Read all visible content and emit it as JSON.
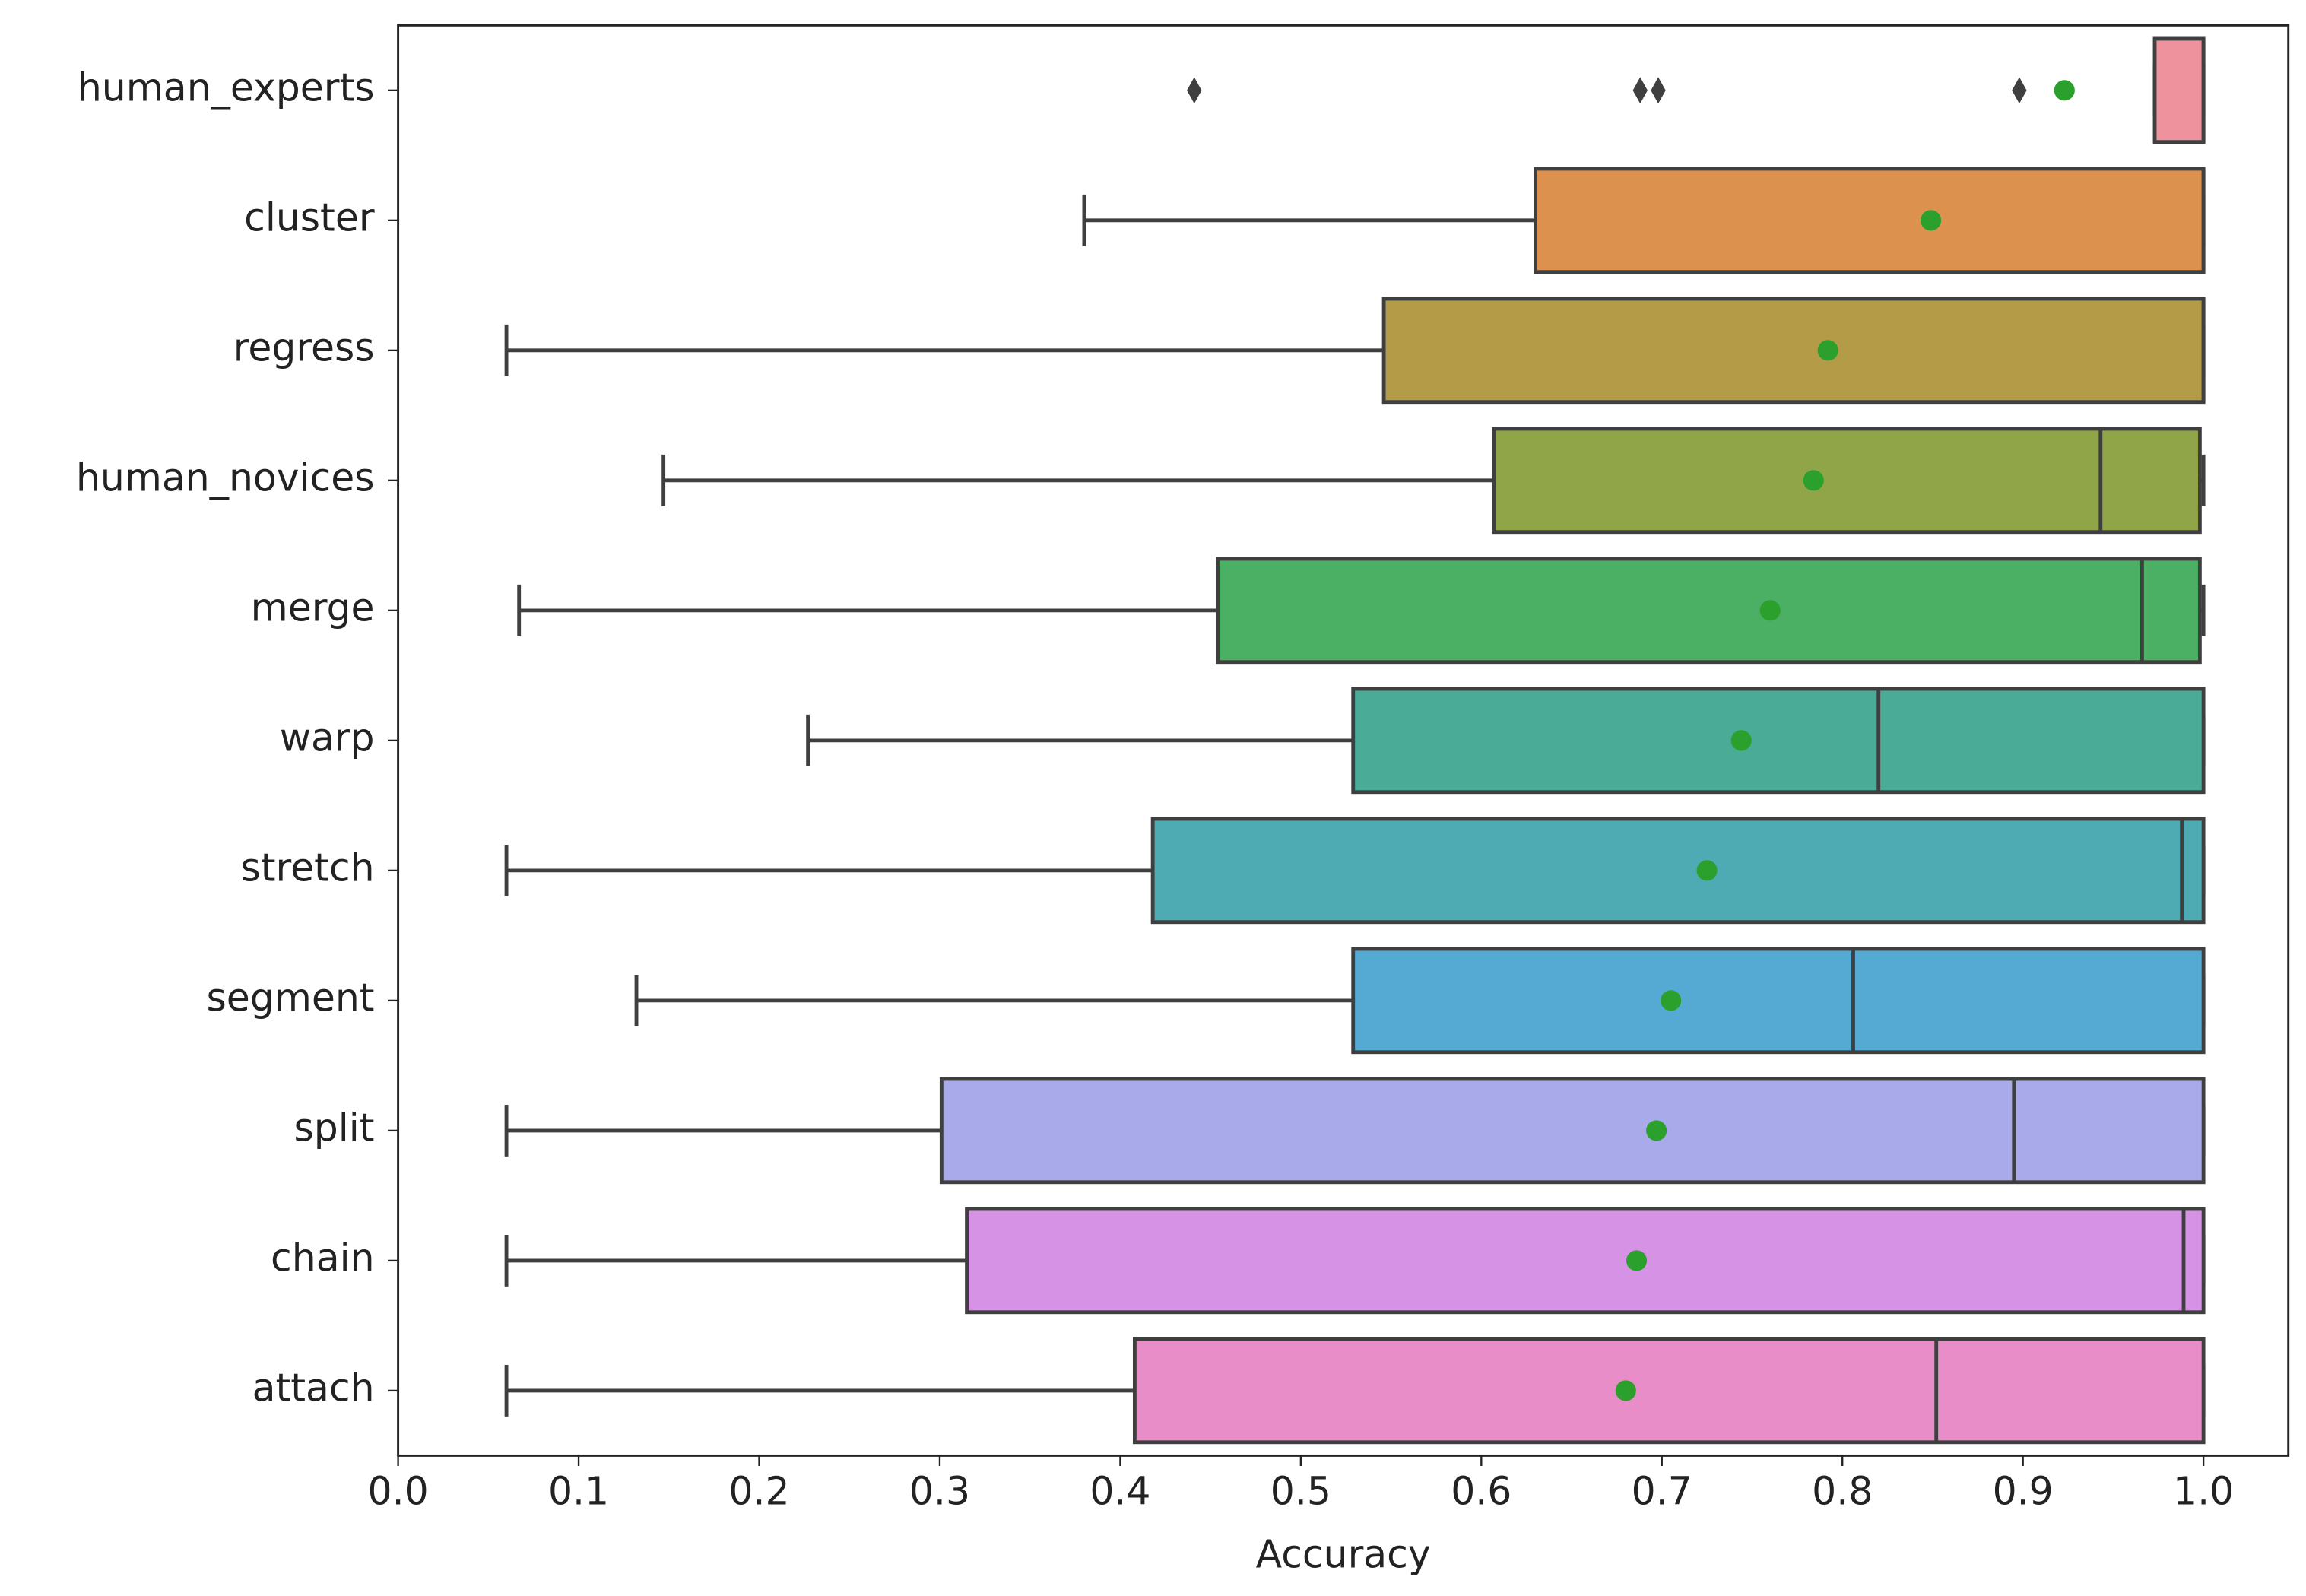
{
  "chart_data": {
    "type": "box",
    "orientation": "horizontal",
    "x_label": "Accuracy",
    "categories": [
      "human_experts",
      "cluster",
      "regress",
      "human_novices",
      "merge",
      "warp",
      "stretch",
      "segment",
      "split",
      "chain",
      "attach"
    ],
    "colors": [
      "#ee939d",
      "#dd914f",
      "#b39b48",
      "#8fa548",
      "#4bb063",
      "#4aac96",
      "#4eaab3",
      "#55aad4",
      "#a8aaea",
      "#d693e6",
      "#e88dc7"
    ],
    "whislo": [
      0.973,
      0.38,
      0.06,
      0.147,
      0.067,
      0.227,
      0.06,
      0.132,
      0.06,
      0.06,
      0.06
    ],
    "q1": [
      0.973,
      0.63,
      0.546,
      0.607,
      0.454,
      0.529,
      0.418,
      0.529,
      0.301,
      0.315,
      0.408
    ],
    "median": [
      1.0,
      1.0,
      1.0,
      0.943,
      0.966,
      0.82,
      0.988,
      0.806,
      0.895,
      0.989,
      0.852
    ],
    "q3": [
      1.0,
      1.0,
      1.0,
      0.998,
      0.998,
      1.0,
      1.0,
      1.0,
      1.0,
      1.0,
      1.0
    ],
    "whishi": [
      1.0,
      1.0,
      1.0,
      1.0,
      1.0,
      1.0,
      1.0,
      1.0,
      1.0,
      1.0,
      1.0
    ],
    "means": [
      0.923,
      0.849,
      0.792,
      0.784,
      0.76,
      0.744,
      0.725,
      0.705,
      0.697,
      0.686,
      0.68
    ],
    "outliers": [
      [
        0.441,
        0.688,
        0.698,
        0.898
      ],
      [],
      [],
      [],
      [],
      [],
      [],
      [],
      [],
      [],
      []
    ],
    "mean_color": "#2ca02c",
    "xlim": [
      0,
      1.047
    ],
    "xticks": [
      {
        "value": 0,
        "label": "0.0"
      },
      0.1,
      0.2,
      0.3,
      0.4,
      0.5,
      0.6,
      0.7,
      0.8,
      0.9,
      {
        "value": 1,
        "label": "1.0"
      }
    ]
  }
}
